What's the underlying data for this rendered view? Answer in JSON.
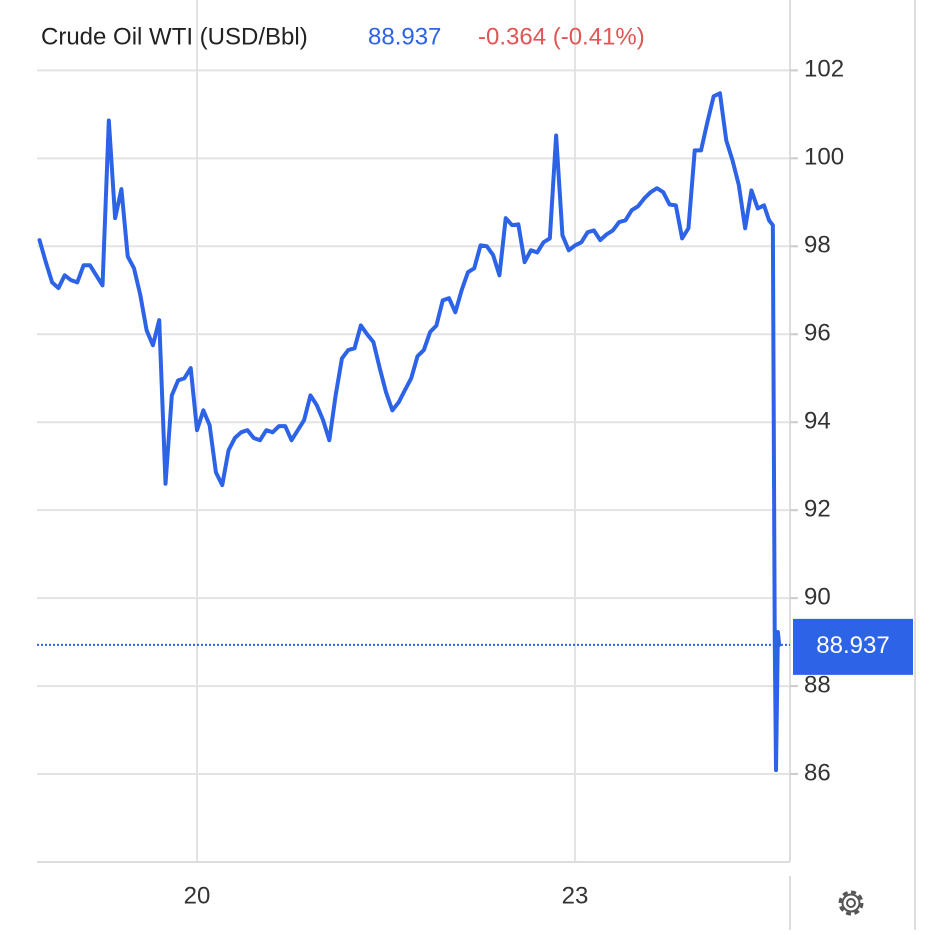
{
  "chart_data": {
    "type": "line",
    "title": "Crude Oil WTI (USD/Bbl)",
    "last_price": 88.937,
    "change_label": "-0.364 (-0.41%)",
    "color": "#2d63e6",
    "x": [
      18.75,
      18.8,
      18.85,
      18.9,
      18.95,
      19.0,
      19.05,
      19.1,
      19.15,
      19.2,
      19.25,
      19.3,
      19.35,
      19.4,
      19.45,
      19.5,
      19.55,
      19.6,
      19.65,
      19.7,
      19.75,
      19.8,
      19.85,
      19.9,
      19.95,
      20.0,
      20.05,
      20.1,
      20.15,
      20.2,
      20.25,
      20.3,
      20.35,
      20.4,
      20.45,
      20.5,
      20.55,
      20.6,
      20.65,
      20.7,
      20.75,
      20.8,
      20.85,
      20.9,
      20.95,
      21.0,
      21.05,
      21.1,
      21.15,
      21.2,
      21.25,
      21.3,
      21.35,
      21.4,
      21.45,
      21.5,
      21.55,
      21.6,
      21.65,
      21.7,
      21.75,
      21.8,
      21.85,
      21.9,
      21.95,
      22.0,
      22.05,
      22.1,
      22.15,
      22.2,
      22.25,
      22.3,
      22.35,
      22.4,
      22.45,
      22.5,
      22.55,
      22.6,
      22.65,
      22.7,
      22.75,
      22.8,
      22.85,
      22.9,
      22.95,
      23.0,
      23.05,
      23.1,
      23.15,
      23.2,
      23.25,
      23.3,
      23.35,
      23.4,
      23.45,
      23.5,
      23.55,
      23.6,
      23.65,
      23.7,
      23.75,
      23.8,
      23.85,
      23.9,
      23.95,
      24.0,
      24.05,
      24.1,
      24.15,
      24.2,
      24.25,
      24.3,
      24.35,
      24.4,
      24.45,
      24.5,
      24.54,
      24.57,
      24.585,
      24.595,
      24.61,
      24.62
    ],
    "values": [
      98.14,
      97.64,
      97.18,
      97.05,
      97.34,
      97.23,
      97.18,
      97.57,
      97.57,
      97.34,
      97.11,
      100.86,
      98.64,
      99.3,
      97.77,
      97.5,
      96.89,
      96.09,
      95.75,
      96.32,
      92.6,
      94.61,
      94.95,
      95.0,
      95.23,
      93.82,
      94.27,
      93.93,
      92.86,
      92.57,
      93.36,
      93.64,
      93.77,
      93.82,
      93.64,
      93.59,
      93.82,
      93.77,
      93.91,
      93.91,
      93.59,
      93.82,
      94.05,
      94.61,
      94.39,
      94.05,
      93.59,
      94.61,
      95.45,
      95.64,
      95.68,
      96.2,
      96.0,
      95.82,
      95.23,
      94.68,
      94.27,
      94.45,
      94.73,
      95.0,
      95.5,
      95.64,
      96.05,
      96.2,
      96.77,
      96.82,
      96.5,
      97.0,
      97.41,
      97.5,
      98.02,
      98.0,
      97.8,
      97.34,
      98.64,
      98.48,
      98.5,
      97.64,
      97.91,
      97.86,
      98.09,
      98.18,
      100.52,
      98.25,
      97.91,
      98.02,
      98.09,
      98.32,
      98.36,
      98.14,
      98.27,
      98.36,
      98.55,
      98.59,
      98.82,
      98.91,
      99.09,
      99.23,
      99.32,
      99.23,
      98.95,
      98.93,
      98.18,
      98.41,
      100.18,
      100.18,
      100.82,
      101.41,
      101.48,
      100.41,
      99.95,
      99.39,
      98.41,
      99.27,
      98.86,
      98.93,
      98.59,
      98.48,
      89.05,
      86.09,
      89.23,
      88.937
    ],
    "xlim": [
      18.73,
      24.706
    ],
    "xticks": [
      20,
      23
    ],
    "ylim": [
      84,
      103.6
    ],
    "yticks": [
      86,
      88,
      90,
      92,
      94,
      96,
      98,
      100,
      102
    ],
    "grid": true
  }
}
